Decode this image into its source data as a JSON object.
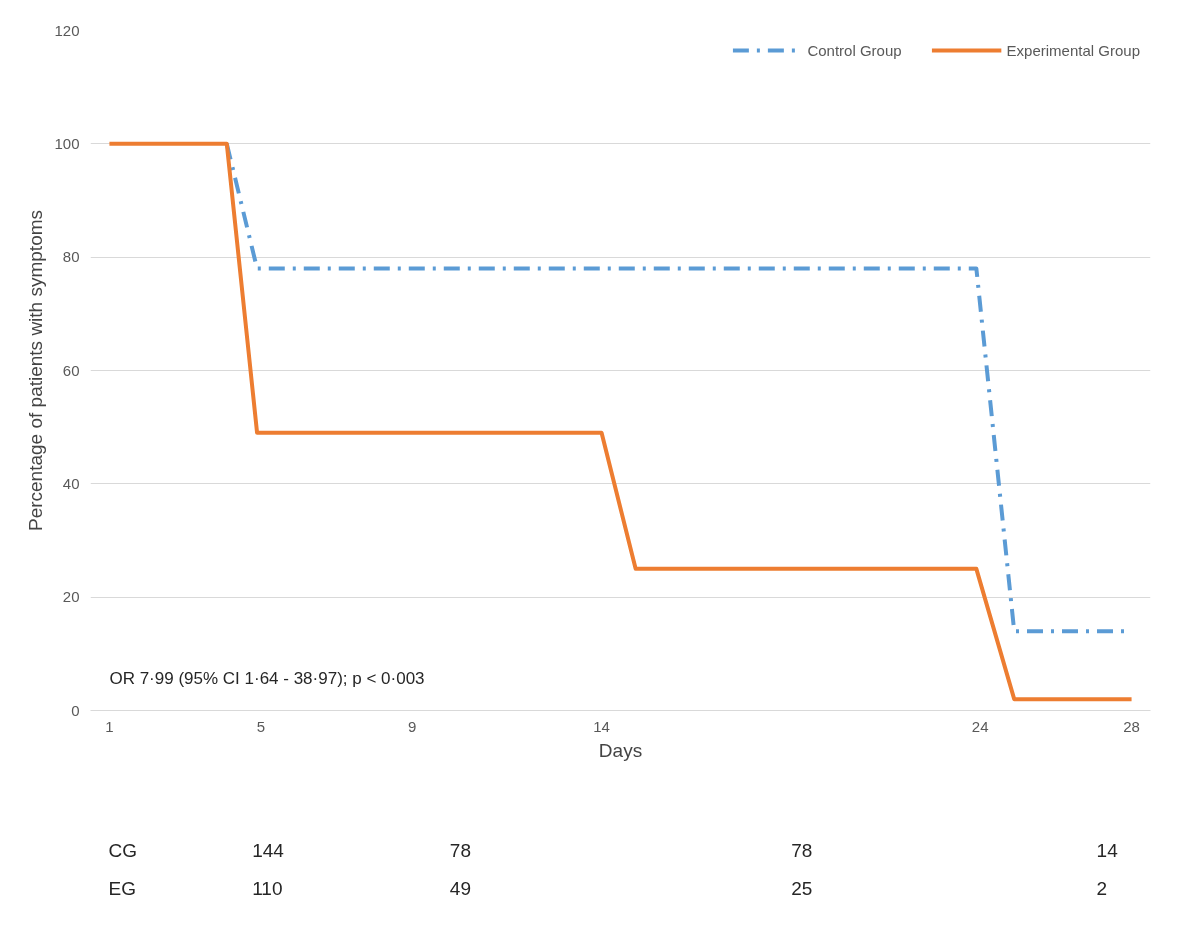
{
  "chart_data": {
    "type": "line",
    "xlabel": "Days",
    "ylabel": "Percentage of patients with symptoms",
    "xlim": [
      0.5,
      28.5
    ],
    "xticks": [
      1,
      5,
      9,
      14,
      24,
      28
    ],
    "ylim": [
      0,
      120
    ],
    "yticks": [
      0,
      20,
      40,
      60,
      80,
      100,
      120
    ],
    "grid": "y",
    "legend": "top right",
    "marker": "none",
    "series": [
      {
        "name": "Control Group",
        "color": "#5b9bd5",
        "line_style": "dashed",
        "x": [
          4.1,
          4.9,
          23.9,
          24.9,
          27.8
        ],
        "values": [
          100,
          78,
          78,
          14,
          14
        ]
      },
      {
        "name": "Experimental Group",
        "color": "#ed7d31",
        "line_style": "solid",
        "x": [
          1,
          4.1,
          4.9,
          14,
          14.9,
          23.9,
          24.9,
          28
        ],
        "values": [
          100,
          100,
          49,
          49,
          25,
          25,
          2,
          2
        ]
      }
    ],
    "annotations": [
      "OR 7·99 (95% CI 1·64 - 38·97); p < 0·003",
      "CG",
      "144",
      "78",
      "78",
      "14",
      "EG",
      "110",
      "49",
      "25",
      "2"
    ]
  }
}
